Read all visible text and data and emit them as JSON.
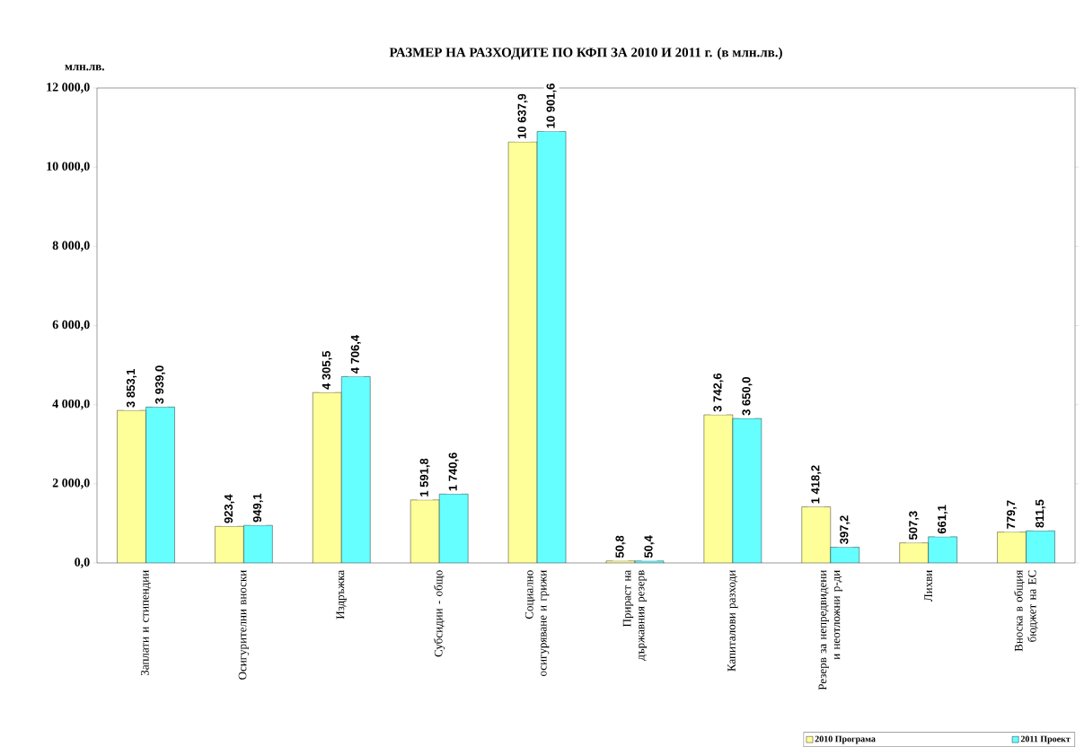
{
  "chart_data": {
    "type": "bar",
    "title": "РАЗМЕР НА РАЗХОДИТЕ ПО КФП ЗА 2010 И 2011 г. (в млн.лв.)",
    "ylabel": "млн.лв.",
    "categories": [
      "Заплати и стипендии",
      "Осигурителни вноски",
      "Издръжка",
      "Субсидии - общо",
      "Социално осигуряване и грижи",
      "Прираст на държавния резерв",
      "Капиталови разходи",
      "Резерв за непредвидени и неотложни р-ди",
      "Лихви",
      "Вноска в общия бюджет на ЕС"
    ],
    "series": [
      {
        "name": "2010 Програма",
        "color": "#ffff99",
        "values": [
          3853.1,
          923.4,
          4305.5,
          1591.8,
          10637.9,
          50.8,
          3742.6,
          1418.2,
          507.3,
          779.7
        ],
        "value_labels": [
          "3 853,1",
          "923,4",
          "4 305,5",
          "1 591,8",
          "10 637,9",
          "50,8",
          "3 742,6",
          "1 418,2",
          "507,3",
          "779,7"
        ]
      },
      {
        "name": "2011 Проект",
        "color": "#66ffff",
        "values": [
          3939.0,
          949.1,
          4706.4,
          1740.6,
          10901.6,
          50.4,
          3650.0,
          397.2,
          661.1,
          811.5
        ],
        "value_labels": [
          "3 939,0",
          "949,1",
          "4 706,4",
          "1 740,6",
          "10 901,6",
          "50,4",
          "3 650,0",
          "397,2",
          "661,1",
          "811,5"
        ]
      }
    ],
    "ylim": [
      0,
      12000
    ],
    "yticks": [
      {
        "value": 0,
        "label": "0,0"
      },
      {
        "value": 2000,
        "label": "2 000,0"
      },
      {
        "value": 4000,
        "label": "4 000,0"
      },
      {
        "value": 6000,
        "label": "6 000,0"
      },
      {
        "value": 8000,
        "label": "8 000,0"
      },
      {
        "value": 10000,
        "label": "10 000,0"
      },
      {
        "value": 12000,
        "label": "12 000,0"
      }
    ],
    "legend": "bottom",
    "grid": false
  }
}
